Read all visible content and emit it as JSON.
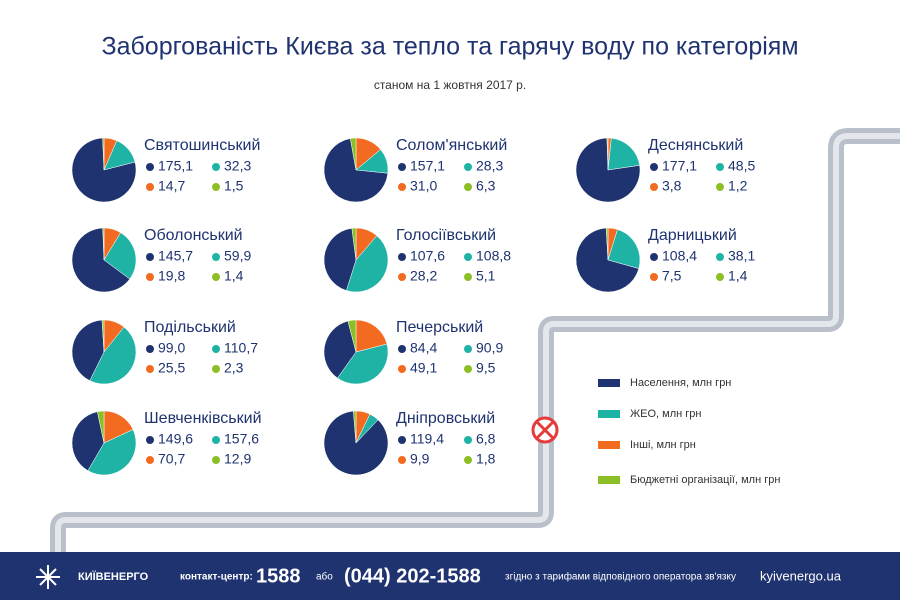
{
  "header": {
    "title": "Заборгованість Києва за тепло та гарячу воду по категоріям",
    "subtitle": "станом на 1 жовтня 2017 р."
  },
  "legend": {
    "labels": [
      "Населення, млн грн",
      "ЖЕО, млн грн",
      "Інші, млн грн",
      "Бюджетні організації, млн грн"
    ],
    "colors": [
      "#1f3370",
      "#1fb3a6",
      "#f26b21",
      "#8cbf26"
    ]
  },
  "chart_data": [
    {
      "type": "pie",
      "title": "Святошинський",
      "values": [
        175.1,
        32.3,
        14.7,
        1.5
      ],
      "value_labels": [
        "175,1",
        "32,3",
        "14,7",
        "1,5"
      ]
    },
    {
      "type": "pie",
      "title": "Солом'янський",
      "values": [
        157.1,
        28.3,
        31.0,
        6.3
      ],
      "value_labels": [
        "157,1",
        "28,3",
        "31,0",
        "6,3"
      ]
    },
    {
      "type": "pie",
      "title": "Деснянський",
      "values": [
        177.1,
        48.5,
        3.8,
        1.2
      ],
      "value_labels": [
        "177,1",
        "48,5",
        "3,8",
        "1,2"
      ]
    },
    {
      "type": "pie",
      "title": "Оболонський",
      "values": [
        145.7,
        59.9,
        19.8,
        1.4
      ],
      "value_labels": [
        "145,7",
        "59,9",
        "19,8",
        "1,4"
      ]
    },
    {
      "type": "pie",
      "title": "Голосіївський",
      "values": [
        107.6,
        108.8,
        28.2,
        5.1
      ],
      "value_labels": [
        "107,6",
        "108,8",
        "28,2",
        "5,1"
      ]
    },
    {
      "type": "pie",
      "title": "Дарницький",
      "values": [
        108.4,
        38.1,
        7.5,
        1.4
      ],
      "value_labels": [
        "108,4",
        "38,1",
        "7,5",
        "1,4"
      ]
    },
    {
      "type": "pie",
      "title": "Подільський",
      "values": [
        99.0,
        110.7,
        25.5,
        2.3
      ],
      "value_labels": [
        "99,0",
        "110,7",
        "25,5",
        "2,3"
      ]
    },
    {
      "type": "pie",
      "title": "Печерський",
      "values": [
        84.4,
        90.9,
        49.1,
        9.5
      ],
      "value_labels": [
        "84,4",
        "90,9",
        "49,1",
        "9,5"
      ]
    },
    {
      "type": "pie",
      "title": "Шевченківський",
      "values": [
        149.6,
        157.6,
        70.7,
        12.9
      ],
      "value_labels": [
        "149,6",
        "157,6",
        "70,7",
        "12,9"
      ]
    },
    {
      "type": "pie",
      "title": "Дніпровський",
      "values": [
        119.4,
        6.8,
        9.9,
        1.8
      ],
      "value_labels": [
        "119,4",
        "6,8",
        "9,9",
        "1,8"
      ]
    }
  ],
  "footer": {
    "brand": "КИЇВЕНЕРГО",
    "contact": "контакт-центр:",
    "short": "1588",
    "or": "або",
    "phone": "(044) 202-1588",
    "note": "згідно з тарифами відповідного оператора зв'язку",
    "site": "kyivenergo.ua"
  }
}
